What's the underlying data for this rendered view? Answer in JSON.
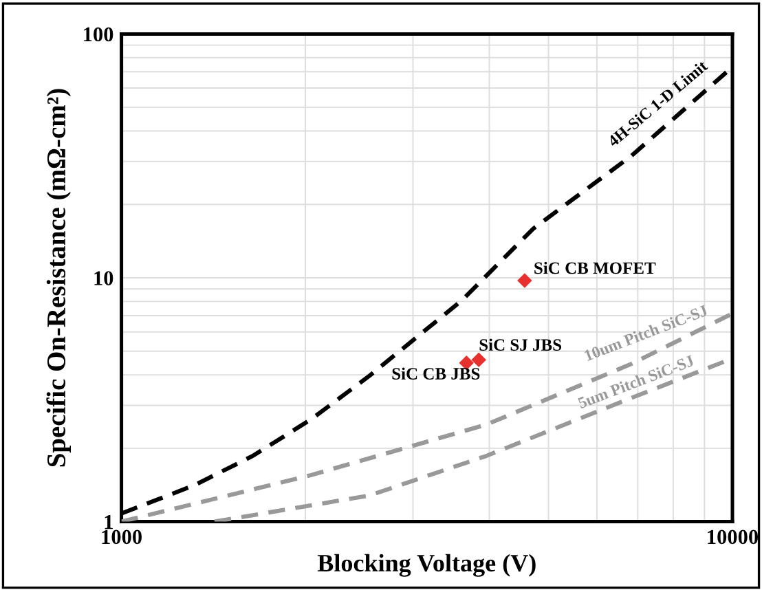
{
  "chart_data": {
    "type": "line",
    "xlabel": "Blocking Voltage (V)",
    "ylabel": "Specific On-Resistance (mΩ-cm²)",
    "log": "xy",
    "grid": true,
    "line_style": "dashed",
    "marker": "none",
    "xlim": [
      1000,
      10000
    ],
    "ylim": [
      1,
      100
    ],
    "xticks": [
      1000,
      {
        "value": 2000,
        "label": null
      },
      {
        "value": 3000,
        "label": null
      },
      {
        "value": 4000,
        "label": null
      },
      {
        "value": 5000,
        "label": null
      },
      {
        "value": 6000,
        "label": null
      },
      {
        "value": 7000,
        "label": null
      },
      {
        "value": 8000,
        "label": null
      },
      {
        "value": 9000,
        "label": null
      },
      10000
    ],
    "yticks": [
      1,
      {
        "value": 2,
        "label": null
      },
      {
        "value": 3,
        "label": null
      },
      {
        "value": 4,
        "label": null
      },
      {
        "value": 5,
        "label": null
      },
      {
        "value": 6,
        "label": null
      },
      {
        "value": 7,
        "label": null
      },
      {
        "value": 8,
        "label": null
      },
      {
        "value": 9,
        "label": null
      },
      10,
      {
        "value": 20,
        "label": null
      },
      {
        "value": 30,
        "label": null
      },
      {
        "value": 40,
        "label": null
      },
      {
        "value": 50,
        "label": null
      },
      {
        "value": 60,
        "label": null
      },
      {
        "value": 70,
        "label": null
      },
      {
        "value": 80,
        "label": null
      },
      {
        "value": 90,
        "label": null
      },
      100
    ],
    "series": [
      {
        "name": "4H-SiC 1-D Limit",
        "color": "#000000",
        "x": [
          1000,
          1316,
          1640,
          2040,
          2545,
          3605,
          4720,
          6840,
          9860
        ],
        "values": [
          1.08,
          1.41,
          1.86,
          2.62,
          3.96,
          8.07,
          15.9,
          31.7,
          71
        ]
      },
      {
        "name": "10um Pitch SiC-SJ",
        "color": "#999999",
        "x": [
          1000,
          2040,
          3955,
          6840,
          9960
        ],
        "values": [
          1.0,
          1.55,
          2.5,
          4.44,
          7.1
        ]
      },
      {
        "name": "5um Pitch SiC-SJ",
        "color": "#999999",
        "x": [
          1420,
          2545,
          3955,
          6840,
          9960
        ],
        "values": [
          1.0,
          1.28,
          1.86,
          3.22,
          4.65
        ]
      },
      {
        "type": "scatter",
        "marker": "diamond",
        "color": "#e8312f",
        "x": [
          3670,
          3845,
          4570
        ],
        "values": [
          4.48,
          4.61,
          9.75
        ]
      }
    ],
    "annotations": [
      {
        "text": "SiC CB JBS",
        "x": 3670,
        "y": 4.48
      },
      {
        "text": "SiC SJ JBS",
        "x": 3845,
        "y": 4.61
      },
      {
        "text": "SiC CB MOFET",
        "x": 4570,
        "y": 9.75
      }
    ]
  }
}
